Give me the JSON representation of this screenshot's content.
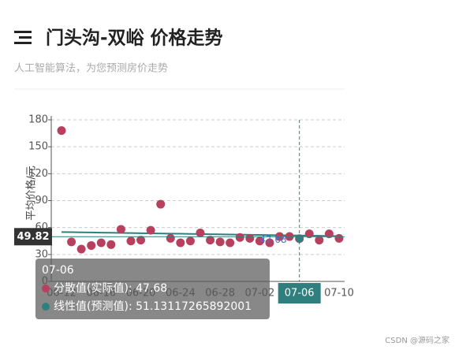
{
  "header": {
    "title": "门头沟-双峪 价格走势",
    "subtitle": "人工智能算法，为您预测房价走势"
  },
  "chart_data": {
    "type": "scatter",
    "y_label": "平均价格/元",
    "categories": [
      "06-12",
      null,
      null,
      null,
      "06-16",
      null,
      null,
      null,
      "06-20",
      null,
      null,
      null,
      "06-24",
      null,
      null,
      null,
      "06-28",
      null,
      null,
      null,
      "07-02",
      null,
      null,
      null,
      "07-06",
      null,
      null,
      null,
      "07-10"
    ],
    "series": [
      {
        "name": "分散值(实际值)",
        "color": "#b8405e",
        "values": [
          168,
          44,
          36,
          40,
          43,
          41,
          58,
          45,
          46,
          57,
          86,
          48,
          43,
          45,
          54,
          46,
          44,
          43,
          49,
          48,
          45,
          43,
          50,
          50,
          47.68,
          53,
          46,
          53,
          48
        ]
      },
      {
        "name": "线性值(预测值)",
        "color": "#2f7f7f",
        "values": [
          55.0,
          54.84,
          54.68,
          54.52,
          54.36,
          54.19,
          54.03,
          53.87,
          53.71,
          53.55,
          53.39,
          53.23,
          53.07,
          52.91,
          52.74,
          52.58,
          52.42,
          52.26,
          52.1,
          51.94,
          51.78,
          51.62,
          51.46,
          51.29,
          51.13117265892001,
          50.97,
          50.81,
          50.65,
          50.49
        ]
      }
    ],
    "ylim": [
      0,
      180
    ],
    "yticks": [
      0,
      30,
      60,
      90,
      120,
      150,
      180
    ],
    "grid": true,
    "tooltip_index": 24,
    "axis_pointer_y": 49.82
  },
  "watermark": "CSDN @源码之家"
}
